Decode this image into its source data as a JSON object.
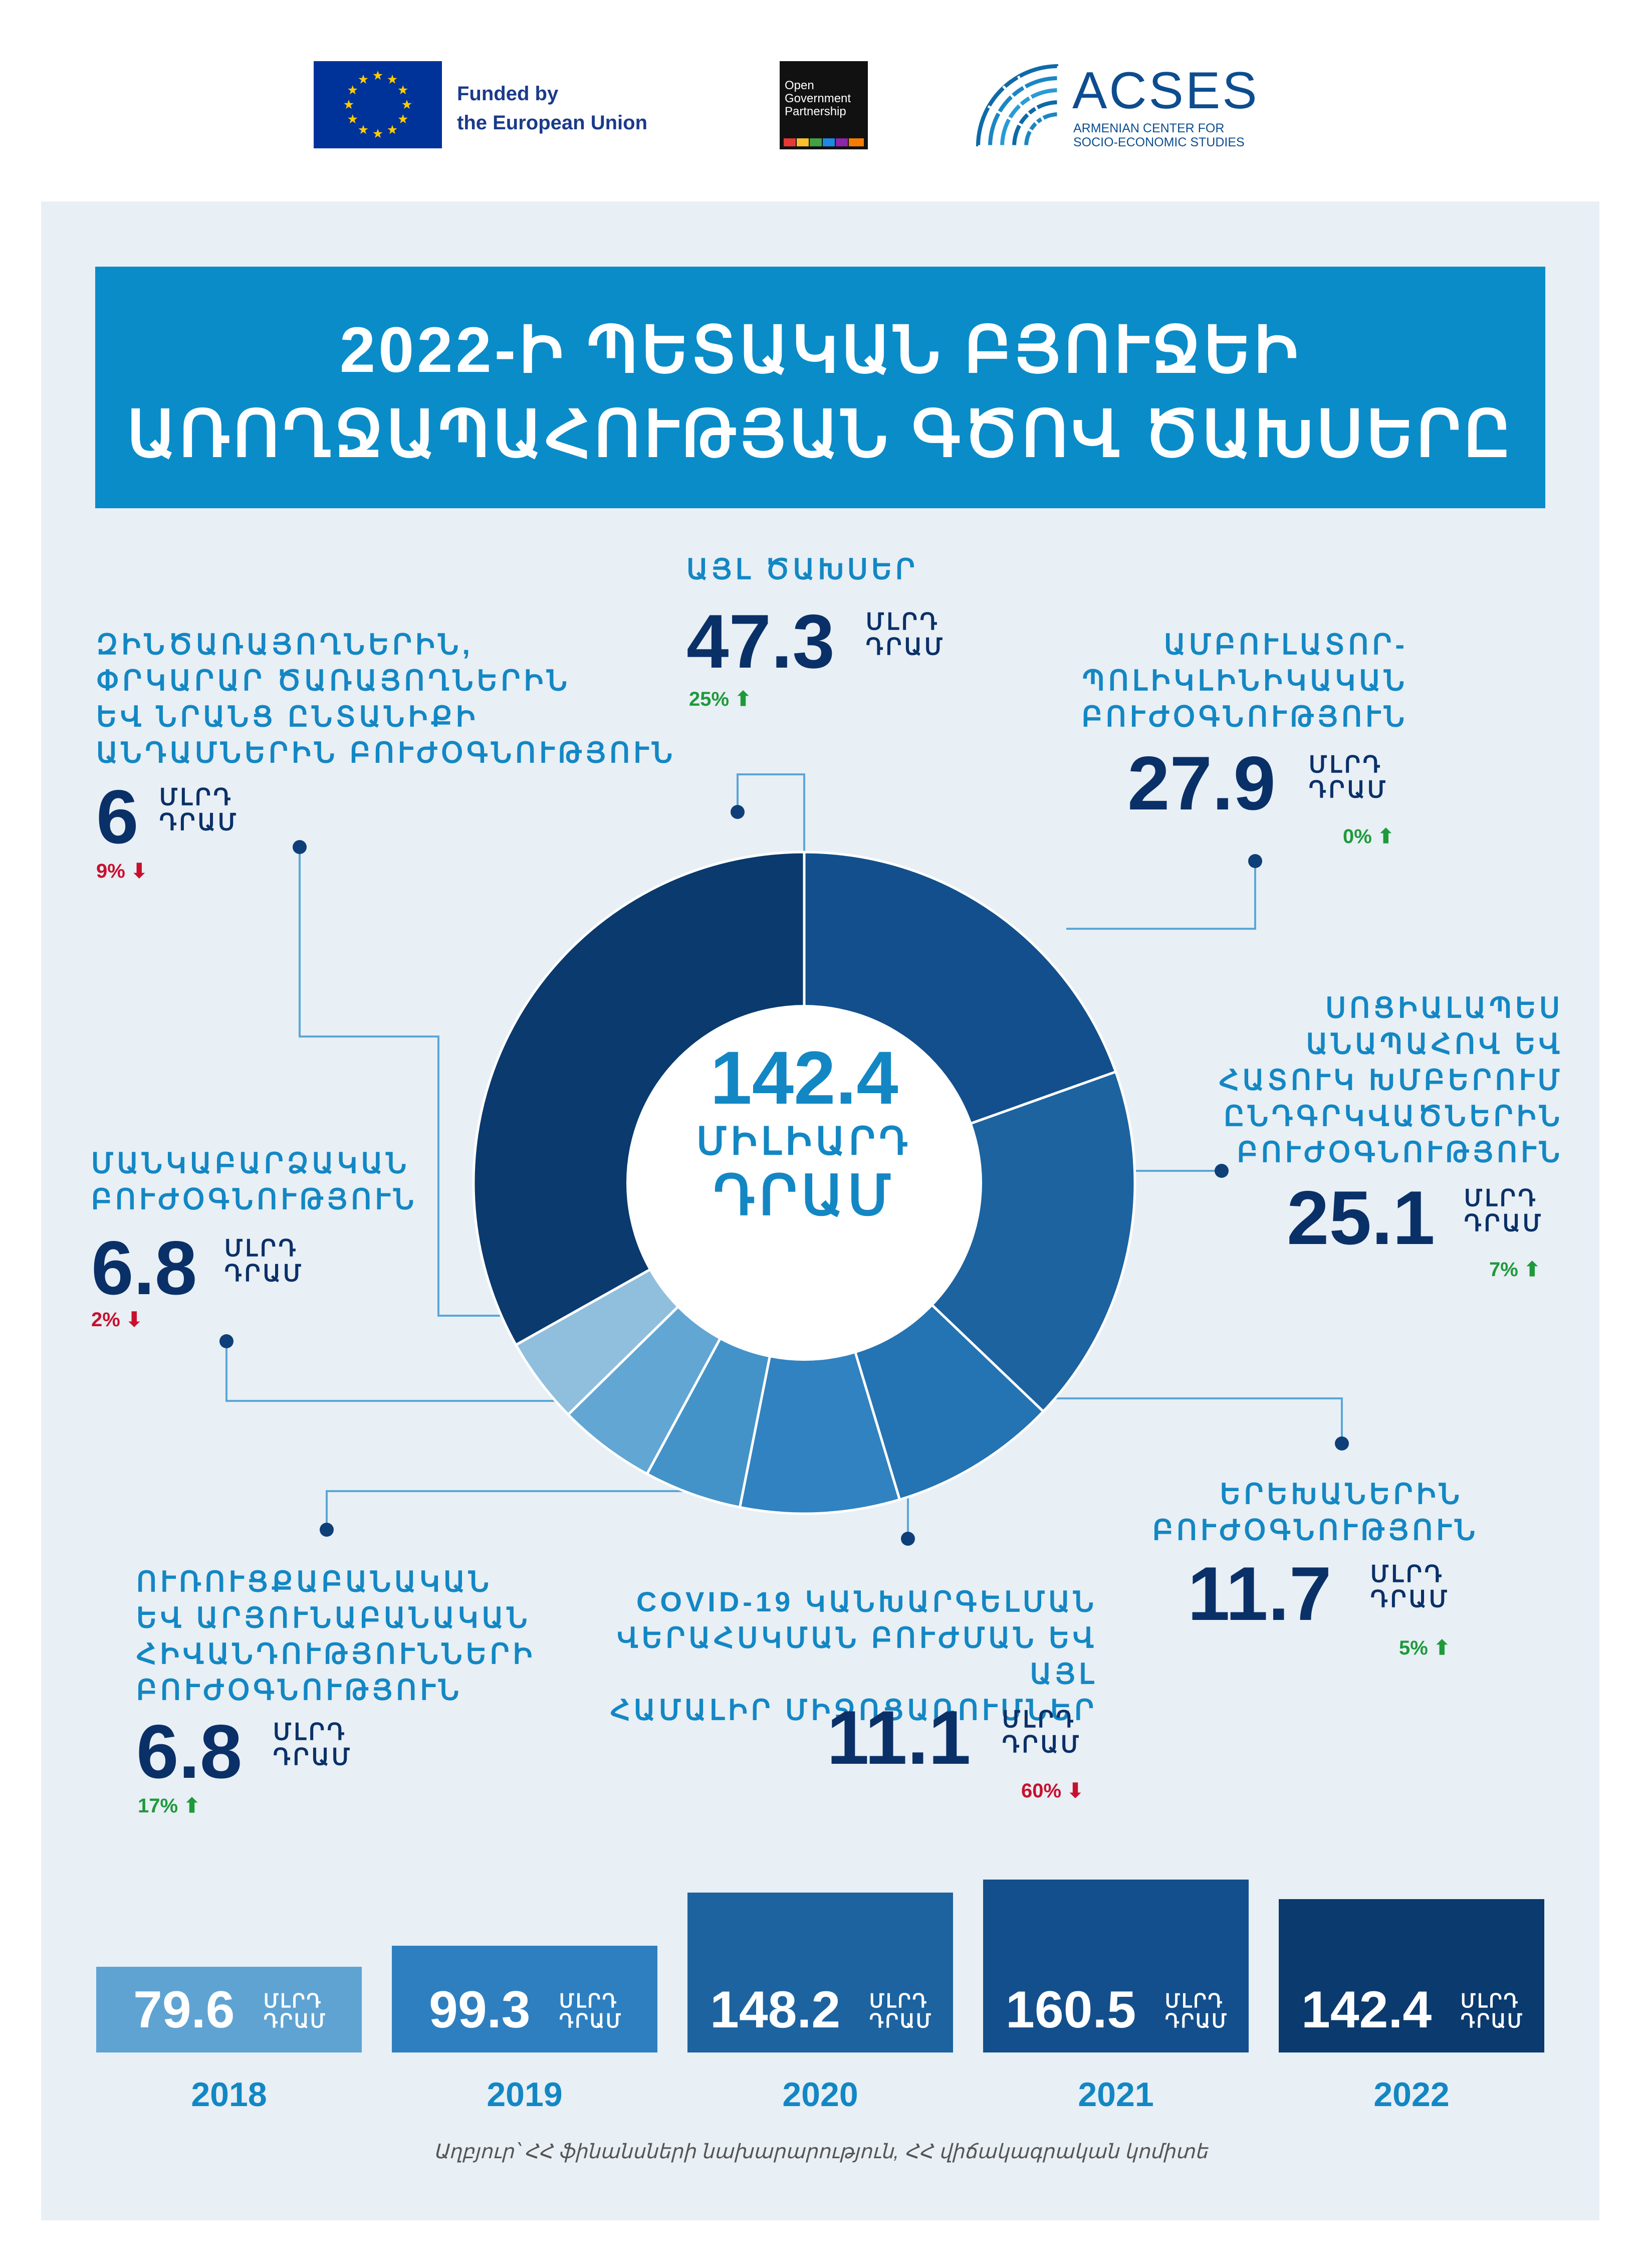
{
  "logos": {
    "eu_text": [
      "Funded by",
      "the European Union"
    ],
    "ogp_text": [
      "Open",
      "Government",
      "Partnership"
    ],
    "acses_title": "ACSES",
    "acses_sub": [
      "ARMENIAN CENTER FOR",
      "SOCIO-ECONOMIC STUDIES"
    ]
  },
  "title": [
    "2022-Ի ՊԵՏԱԿԱՆ ԲՅՈՒՋԵԻ",
    "ԱՌՈՂՋԱՊԱՀՈՒԹՅԱՆ ԳԾՈՎ ԾԱԽՍԵՐԸ"
  ],
  "center": {
    "value": "142.4",
    "unit_line1": "ՄԻԼԻԱՐԴ",
    "unit_line2": "ԴՐԱՄ"
  },
  "unit": {
    "line1": "ՄԼՐԴ",
    "line2": "ԴՐԱՄ"
  },
  "categories": [
    {
      "label": [
        "ԱՅԼ ԾԱԽՍԵՐ"
      ],
      "value": "47.3",
      "change": "25%",
      "direction": "up"
    },
    {
      "label": [
        "ԱՄԲՈՒԼԱՏՈՐ-",
        "ՊՈԼԻԿԼԻՆԻԿԱԿԱՆ",
        "ԲՈՒԺՕԳՆՈՒԹՅՈՒՆ"
      ],
      "value": "27.9",
      "change": "0%",
      "direction": "up"
    },
    {
      "label": [
        "ՍՈՑԻԱԼԱՊԵՍ",
        "ԱՆԱՊԱՀՈՎ ԵՎ",
        "ՀԱՏՈՒԿ ԽՄԲԵՐՈՒՄ",
        "ԸՆԴԳՐԿՎԱԾՆԵՐԻՆ",
        "ԲՈՒԺՕԳՆՈՒԹՅՈՒՆ"
      ],
      "value": "25.1",
      "change": "7%",
      "direction": "up"
    },
    {
      "label": [
        "ԵՐԵԽԱՆԵՐԻՆ",
        "ԲՈՒԺՕԳՆՈՒԹՅՈՒՆ"
      ],
      "value": "11.7",
      "change": "5%",
      "direction": "up"
    },
    {
      "label": [
        "COVID-19 ԿԱՆԽԱՐԳԵԼՄԱՆ",
        "ՎԵՐԱՀՍԿՄԱՆ ԲՈՒԺՄԱՆ ԵՎ ԱՅԼ",
        "ՀԱՄԱԼԻՐ ՄԻՋՈՑԱՌՈՒՄՆԵՐ"
      ],
      "value": "11.1",
      "change": "60%",
      "direction": "down"
    },
    {
      "label": [
        "ՈՒՌՈՒՑՔԱԲԱՆԱԿԱՆ",
        "ԵՎ ԱՐՅՈՒՆԱԲԱՆԱԿԱՆ",
        "ՀԻՎԱՆԴՈՒԹՅՈՒՆՆԵՐԻ",
        "ԲՈՒԺՕԳՆՈՒԹՅՈՒՆ"
      ],
      "value": "6.8",
      "change": "17%",
      "direction": "up"
    },
    {
      "label": [
        "ՄԱՆԿԱԲԱՐՁԱԿԱՆ",
        "ԲՈՒԺՕԳՆՈՒԹՅՈՒՆ"
      ],
      "value": "6.8",
      "change": "2%",
      "direction": "down"
    },
    {
      "label": [
        "ԶԻՆԾԱՌԱՅՈՂՆԵՐԻՆ,",
        "ՓՐԿԱՐԱՐ ԾԱՌԱՅՈՂՆԵՐԻՆ",
        "ԵՎ ՆՐԱՆՑ ԸՆՏԱՆԻՔԻ",
        "ԱՆԴԱՄՆԵՐԻՆ ԲՈՒԺՕԳՆՈՒԹՅՈՒՆ"
      ],
      "value": "6",
      "change": "9%",
      "direction": "down"
    }
  ],
  "colors": {
    "panel": "#e8eff5",
    "title_band": "#0a8cc9",
    "accent_text": "#1387c4",
    "value_text": "#0a3068",
    "up": "#1e9a3a",
    "down": "#c8102e",
    "slices": [
      "#0a3a6e",
      "#134f8c",
      "#1c63a0",
      "#2473b2",
      "#3182c0",
      "#4393c9",
      "#62a6d4",
      "#90bfde"
    ]
  },
  "source": "Աղբյուր՝ ՀՀ ֆինանսների նախարարություն, ՀՀ վիճակագրական կոմիտե",
  "chart_data": [
    {
      "type": "pie",
      "variant": "donut",
      "total": 142.4,
      "total_label": "ՄԻԼԻԱՐԴ ԴՐԱՄ",
      "unit": "ՄԼՐԴ ԴՐԱՄ",
      "categories": [
        "ԱՅԼ ԾԱԽՍԵՐ",
        "ԱՄԲՈՒԼԱՏՈՐ-ՊՈԼԻԿԼԻՆԻԿԱԿԱՆ ԲՈՒԺՕԳՆՈՒԹՅՈՒՆ",
        "ՍՈՑԻԱԼԱՊԵՍ ԱՆԱՊԱՀՈՎ ԵՎ ՀԱՏՈՒԿ ԽՄԲԵՐՈՒՄ ԸՆԴԳՐԿՎԱԾՆԵՐԻՆ ԲՈՒԺՕԳՆՈՒԹՅՈՒՆ",
        "ԵՐԵԽԱՆԵՐԻՆ ԲՈՒԺՕԳՆՈՒԹՅՈՒՆ",
        "COVID-19 ԿԱՆԽԱՐԳԵԼՄԱՆ ՎԵՐԱՀՍԿՄԱՆ ԲՈՒԺՄԱՆ ԵՎ ԱՅԼ ՀԱՄԱԼԻՐ ՄԻՋՈՑԱՌՈՒՄՆԵՐ",
        "ՈՒՌՈՒՑՔԱԲԱՆԱԿԱՆ ԵՎ ԱՐՅՈՒՆԱԲԱՆԱԿԱՆ ՀԻՎԱՆԴՈՒԹՅՈՒՆՆԵՐԻ ԲՈՒԺՕԳՆՈՒԹՅՈՒՆ",
        "ՄԱՆԿԱԲԱՐՁԱԿԱՆ ԲՈՒԺՕԳՆՈՒԹՅՈՒՆ",
        "ԶԻՆԾԱՌԱՅՈՂՆԵՐԻՆ, ՓՐԿԱՐԱՐ ԾԱՌԱՅՈՂՆԵՐԻՆ ԵՎ ՆՐԱՆՑ ԸՆՏԱՆԻՔԻ ԱՆԴԱՄՆԵՐԻՆ ԲՈՒԺՕԳՆՈՒԹՅՈՒՆ"
      ],
      "values": [
        47.3,
        27.9,
        25.1,
        11.7,
        11.1,
        6.8,
        6.8,
        6
      ],
      "changes_pct": [
        25,
        0,
        7,
        5,
        -60,
        17,
        -2,
        -9
      ],
      "draw_order": [
        1,
        2,
        3,
        4,
        5,
        6,
        7,
        0
      ]
    },
    {
      "type": "bar",
      "categories": [
        "2018",
        "2019",
        "2020",
        "2021",
        "2022"
      ],
      "values": [
        79.6,
        99.3,
        148.2,
        160.5,
        142.4
      ],
      "value_labels": [
        "79.6",
        "99.3",
        "148.2",
        "160.5",
        "142.4"
      ],
      "unit": "ՄԼՐԴ ԴՐԱՄ",
      "colors": [
        "#5fa3d3",
        "#2e7fc0",
        "#1c63a0",
        "#134f8c",
        "#0a3a6e"
      ]
    }
  ]
}
